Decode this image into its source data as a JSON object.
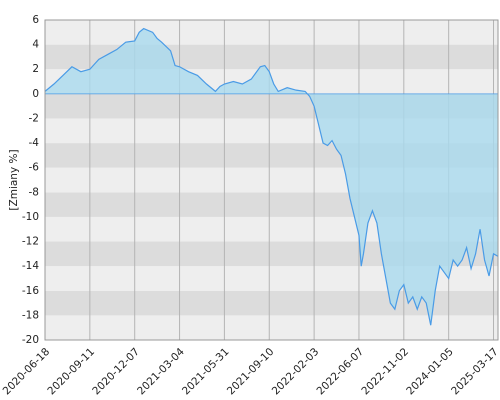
{
  "chart_data": {
    "type": "area",
    "y_label": "[Zmiany %]",
    "x": [
      0,
      0.2,
      0.4,
      0.6,
      0.8,
      1.0,
      1.2,
      1.4,
      1.6,
      1.8,
      2.0,
      2.1,
      2.2,
      2.4,
      2.5,
      2.6,
      2.8,
      2.9,
      3.0,
      3.2,
      3.4,
      3.6,
      3.8,
      3.9,
      4.0,
      4.2,
      4.4,
      4.6,
      4.8,
      4.9,
      5.0,
      5.1,
      5.2,
      5.4,
      5.6,
      5.8,
      5.9,
      6.0,
      6.1,
      6.2,
      6.3,
      6.4,
      6.5,
      6.6,
      6.7,
      6.8,
      6.9,
      7.0,
      7.05,
      7.1,
      7.2,
      7.3,
      7.4,
      7.5,
      7.6,
      7.7,
      7.8,
      7.9,
      8.0,
      8.1,
      8.2,
      8.3,
      8.4,
      8.5,
      8.6,
      8.7,
      8.8,
      8.9,
      9.0,
      9.1,
      9.2,
      9.3,
      9.4,
      9.5,
      9.6,
      9.7,
      9.8,
      9.9,
      10.0,
      10.1
    ],
    "values": [
      0.2,
      0.8,
      1.5,
      2.2,
      1.8,
      2.0,
      2.8,
      3.2,
      3.6,
      4.2,
      4.3,
      5.0,
      5.3,
      5.0,
      4.5,
      4.2,
      3.5,
      2.3,
      2.2,
      1.8,
      1.5,
      0.8,
      0.2,
      0.6,
      0.8,
      1.0,
      0.8,
      1.2,
      2.2,
      2.3,
      1.8,
      0.8,
      0.2,
      0.5,
      0.3,
      0.2,
      -0.2,
      -1.0,
      -2.5,
      -4.0,
      -4.2,
      -3.8,
      -4.5,
      -5.0,
      -6.5,
      -8.5,
      -10.0,
      -11.5,
      -14.0,
      -13.0,
      -10.5,
      -9.5,
      -10.5,
      -13.0,
      -15.0,
      -17.0,
      -17.5,
      -16.0,
      -15.5,
      -17.0,
      -16.5,
      -17.5,
      -16.5,
      -17.0,
      -18.8,
      -16.0,
      -14.0,
      -14.5,
      -15.0,
      -13.5,
      -14.0,
      -13.5,
      -12.5,
      -14.2,
      -13.0,
      -11.0,
      -13.5,
      -14.8,
      -13.0,
      -13.2
    ],
    "color": "#4a9be6",
    "fill_color": "#a9d9ee",
    "xlim": [
      0,
      10.1
    ],
    "xticks": [
      {
        "value": 0,
        "label": "2020-06-18"
      },
      {
        "value": 1,
        "label": "2020-09-11"
      },
      {
        "value": 2,
        "label": "2020-12-07"
      },
      {
        "value": 3,
        "label": "2021-03-04"
      },
      {
        "value": 4,
        "label": "2021-05-31"
      },
      {
        "value": 5,
        "label": "2021-09-10"
      },
      {
        "value": 6,
        "label": "2022-02-03"
      },
      {
        "value": 7,
        "label": "2022-06-07"
      },
      {
        "value": 8,
        "label": "2022-11-02"
      },
      {
        "value": 9,
        "label": "2024-01-05"
      },
      {
        "value": 10,
        "label": "2025-03-17"
      }
    ],
    "ylim": [
      -20,
      6
    ],
    "yticks": [
      -20,
      -18,
      -16,
      -14,
      -12,
      -10,
      -8,
      -6,
      -4,
      -2,
      0,
      2,
      4,
      6
    ],
    "grid": true
  }
}
